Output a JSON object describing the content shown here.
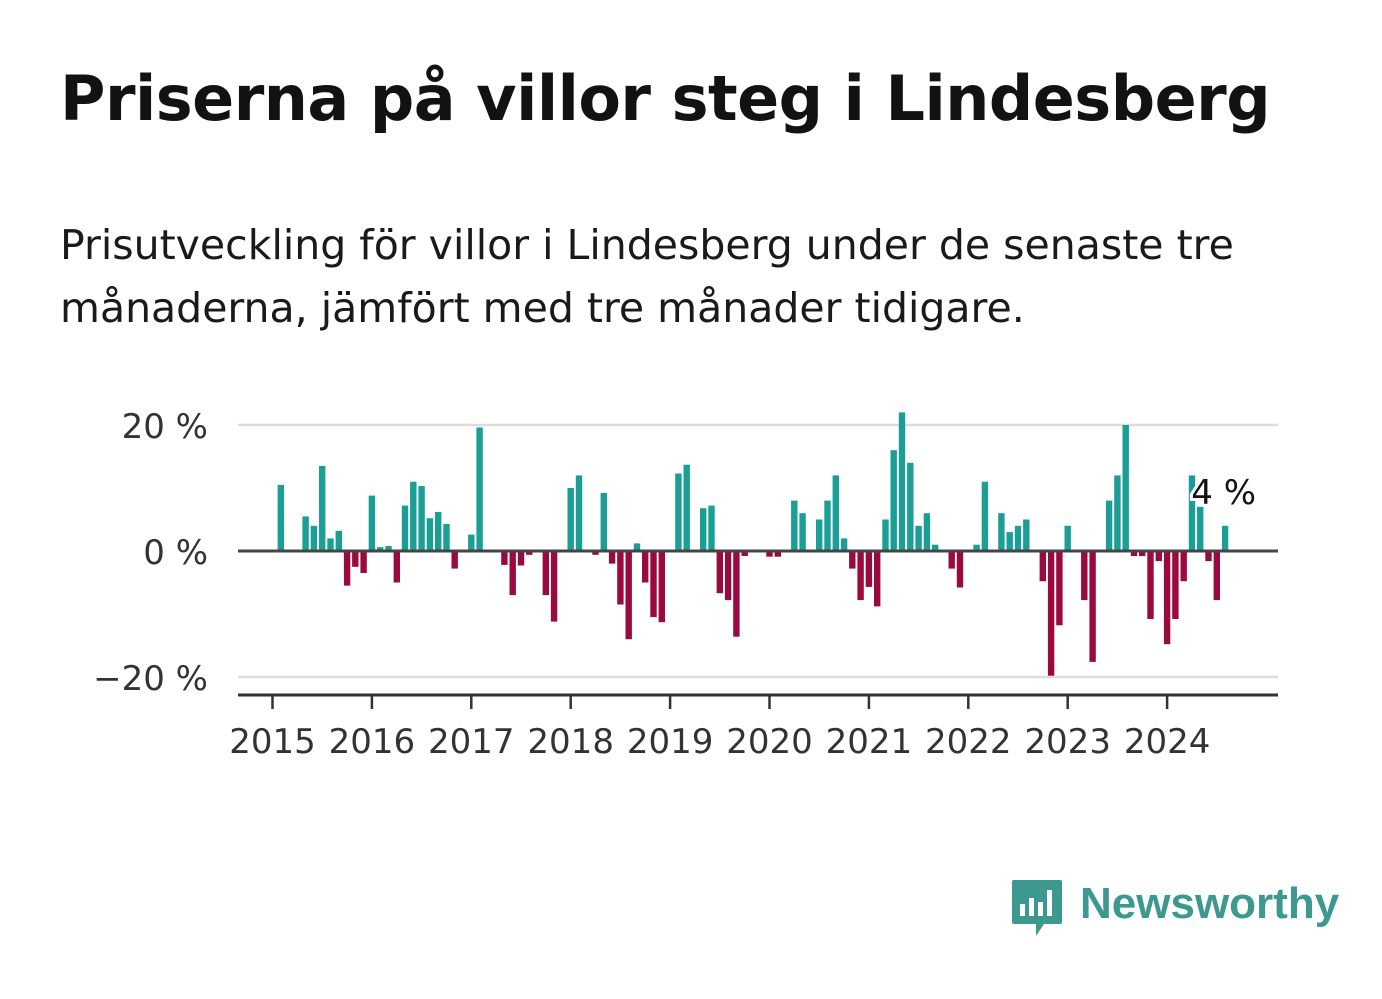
{
  "title": "Priserna på villor steg i Lindesberg",
  "subtitle": "Prisutveckling för villor i Lindesberg under de senaste tre månaderna, jämfört med tre månader tidigare.",
  "logo": {
    "text": "Newsworthy",
    "icon": "chart-bubble-icon"
  },
  "colors": {
    "positive": "#1a9e96",
    "negative": "#9b0a3f",
    "grid": "#dddddd",
    "axis": "#333333",
    "text": "#333333",
    "brand": "#3d9990"
  },
  "chart_data": {
    "type": "bar",
    "title": "Priserna på villor steg i Lindesberg",
    "xlabel": "",
    "ylabel": "",
    "ylim": [
      -23,
      22
    ],
    "yticks": [
      20,
      0,
      -20
    ],
    "ytick_labels": [
      "20 %",
      "0 %",
      "−20 %"
    ],
    "xticks": [
      2015,
      2016,
      2017,
      2018,
      2019,
      2020,
      2021,
      2022,
      2023,
      2024
    ],
    "xtick_labels": [
      "2015",
      "2016",
      "2017",
      "2018",
      "2019",
      "2020",
      "2021",
      "2022",
      "2023",
      "2024"
    ],
    "x_start": "2015-01",
    "annotation": {
      "label": "4 %",
      "value": 4
    },
    "values": [
      null,
      10.5,
      null,
      null,
      5.5,
      4,
      13.5,
      2,
      3.2,
      -5.5,
      -2.5,
      -3.5,
      8.8,
      0.6,
      0.8,
      -5,
      7.2,
      11,
      10.3,
      5.2,
      6.2,
      4.3,
      -2.8,
      null,
      2.6,
      19.6,
      null,
      null,
      -2.2,
      -7,
      -2.3,
      -0.6,
      null,
      -7,
      -11.2,
      null,
      10,
      12,
      null,
      -0.6,
      9.2,
      -2,
      -8.5,
      -14,
      1.2,
      -5,
      -10.5,
      -11.3,
      null,
      12.3,
      13.7,
      null,
      6.8,
      7.2,
      -6.7,
      -7.8,
      -13.6,
      -0.8,
      null,
      null,
      -0.9,
      -0.9,
      null,
      8,
      6,
      null,
      5,
      8,
      12,
      2,
      -2.8,
      -7.8,
      -5.7,
      -8.8,
      5,
      16,
      22,
      14,
      4,
      6,
      1,
      null,
      -2.8,
      -5.8,
      null,
      1,
      11,
      null,
      6,
      3,
      4,
      5,
      null,
      -4.8,
      -19.8,
      -11.8,
      4,
      null,
      -7.8,
      -17.6,
      null,
      8,
      12,
      20,
      -0.8,
      -0.8,
      -10.8,
      -1.6,
      -14.8,
      -10.8,
      -4.8,
      12,
      7,
      -1.6,
      -7.8,
      4
    ]
  }
}
